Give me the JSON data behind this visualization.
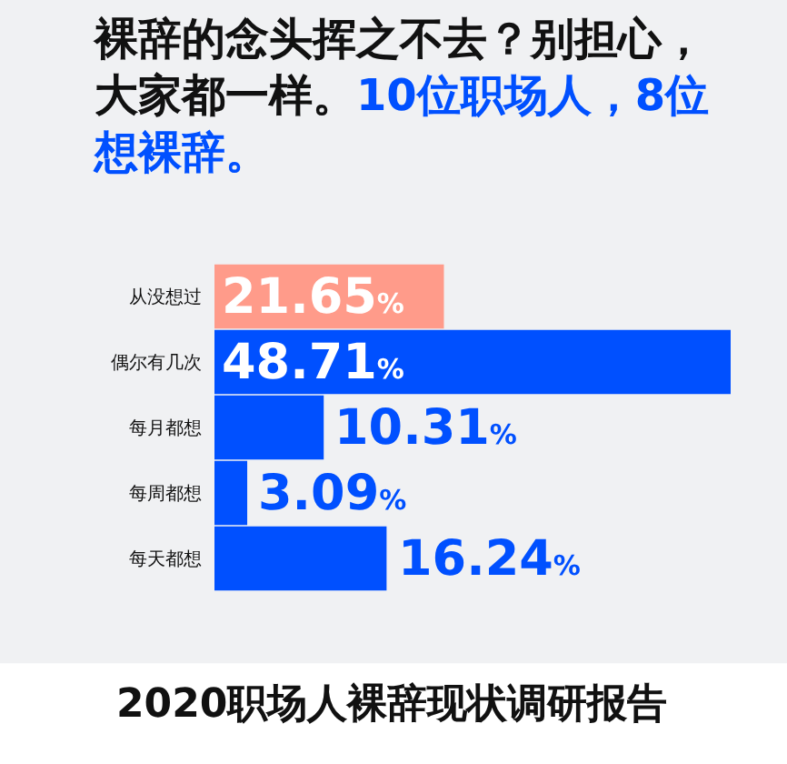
{
  "chart_data": {
    "type": "bar",
    "orientation": "horizontal",
    "title": "裸辞的念头挥之不去？别担心，大家都一样。",
    "subtitle": "10位职场人，8位想裸辞。",
    "categories": [
      "从没想过",
      "偶尔有几次",
      "每月都想",
      "每周都想",
      "每天都想"
    ],
    "values": [
      21.65,
      48.71,
      10.31,
      3.09,
      16.24
    ],
    "colors": [
      "#ff9b8a",
      "#0050ff",
      "#0050ff",
      "#0050ff",
      "#0050ff"
    ],
    "value_labels": [
      "21.65%",
      "48.71%",
      "10.31%",
      "3.09%",
      "16.24%"
    ],
    "annotations": [
      "2020职场人裸辞现状调研报告"
    ],
    "grid": false,
    "legend": false
  }
}
